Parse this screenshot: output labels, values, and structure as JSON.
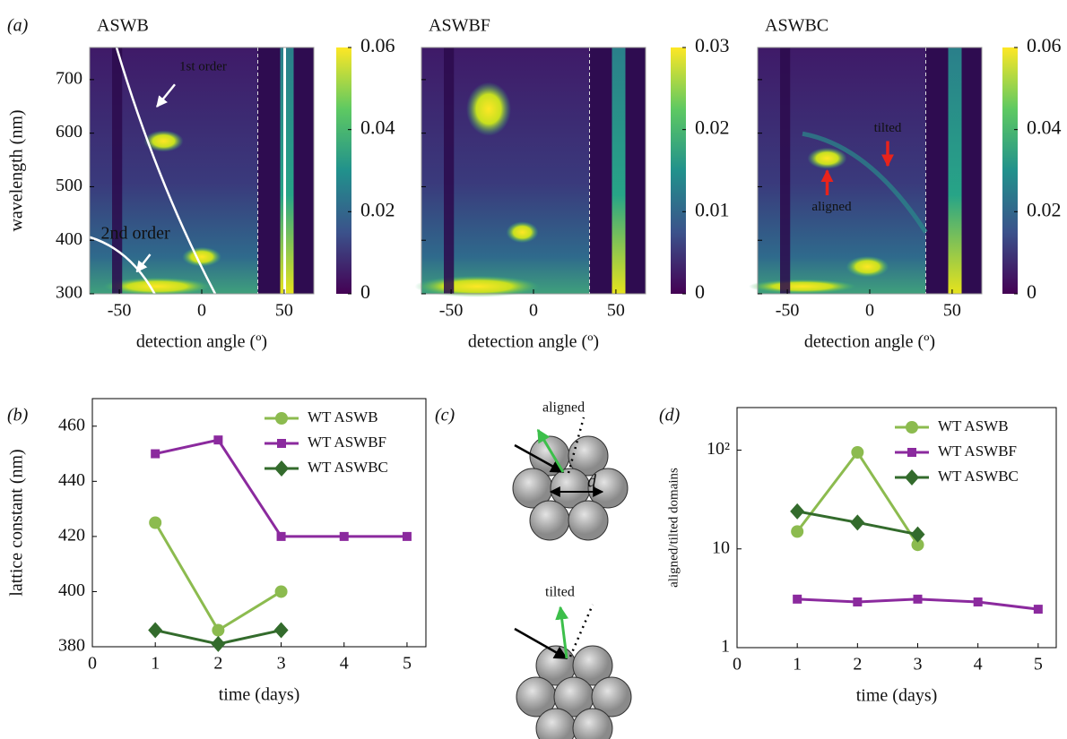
{
  "chart_data": [
    {
      "type": "heatmap",
      "panel_label": "(a)",
      "title": "ASWB",
      "xlabel": "detection angle (º)",
      "ylabel": "wavelength (nm)",
      "xlim": [
        -68,
        68
      ],
      "xticks": [
        -50,
        0,
        50
      ],
      "ylim": [
        300,
        760
      ],
      "yticks": [
        300,
        400,
        500,
        600,
        700
      ],
      "colormap": "viridis",
      "clim": [
        0,
        0.06
      ],
      "cticks": [
        0,
        0.02,
        0.04,
        0.06
      ],
      "annotations": [
        "1st order",
        "2nd order"
      ]
    },
    {
      "type": "heatmap",
      "title": "ASWBF",
      "xlabel": "detection angle (º)",
      "xlim": [
        -68,
        68
      ],
      "xticks": [
        -50,
        0,
        50
      ],
      "ylim": [
        300,
        760
      ],
      "yticks": [
        300,
        400,
        500,
        600,
        700
      ],
      "colormap": "viridis",
      "clim": [
        0,
        0.03
      ],
      "cticks": [
        0,
        0.01,
        0.02,
        0.03
      ]
    },
    {
      "type": "heatmap",
      "title": "ASWBC",
      "xlabel": "detection angle (º)",
      "xlim": [
        -68,
        68
      ],
      "xticks": [
        -50,
        0,
        50
      ],
      "ylim": [
        300,
        760
      ],
      "yticks": [
        300,
        400,
        500,
        600,
        700
      ],
      "colormap": "viridis",
      "clim": [
        0,
        0.06
      ],
      "cticks": [
        0,
        0.02,
        0.04,
        0.06
      ],
      "annotations": [
        "aligned",
        "tilted"
      ]
    },
    {
      "type": "line",
      "panel_label": "(b)",
      "xlabel": "time (days)",
      "ylabel": "lattice constant (nm)",
      "xlim": [
        0,
        5.3
      ],
      "xticks": [
        0,
        1,
        2,
        3,
        4,
        5
      ],
      "ylim": [
        380,
        470
      ],
      "yticks": [
        380,
        400,
        420,
        440,
        460
      ],
      "legend": "upper right",
      "series": [
        {
          "name": "WT ASWB",
          "color": "#8cbb4f",
          "marker": "circle",
          "x": [
            1,
            2,
            3
          ],
          "values": [
            425,
            386,
            400
          ]
        },
        {
          "name": "WT ASWBF",
          "color": "#8b2a9e",
          "marker": "square",
          "x": [
            1,
            2,
            3,
            4,
            5
          ],
          "values": [
            450,
            455,
            420,
            420,
            420
          ]
        },
        {
          "name": "WT ASWBC",
          "color": "#336b2c",
          "marker": "diamond",
          "x": [
            1,
            2,
            3
          ],
          "values": [
            386,
            381,
            386
          ]
        }
      ]
    },
    {
      "type": "line",
      "panel_label": "(d)",
      "xlabel": "time (days)",
      "ylabel": "aligned/tilted domains",
      "log_y": true,
      "xlim": [
        0,
        5.3
      ],
      "xticks": [
        0,
        1,
        2,
        3,
        4,
        5
      ],
      "ylim": [
        1,
        270
      ],
      "yticks": [
        1,
        10,
        {
          "value": 100,
          "label": "10²"
        }
      ],
      "legend": "upper right",
      "series": [
        {
          "name": "WT ASWB",
          "color": "#8cbb4f",
          "marker": "circle",
          "x": [
            1,
            2,
            3
          ],
          "values": [
            15,
            95,
            11
          ]
        },
        {
          "name": "WT ASWBF",
          "color": "#8b2a9e",
          "marker": "square",
          "x": [
            1,
            2,
            3,
            4,
            5
          ],
          "values": [
            3.1,
            2.9,
            3.1,
            2.9,
            2.45
          ]
        },
        {
          "name": "WT ASWBC",
          "color": "#336b2c",
          "marker": "diamond",
          "x": [
            1,
            2,
            3
          ],
          "values": [
            24,
            18.5,
            14
          ]
        }
      ]
    }
  ],
  "diagram": {
    "panel_label": "(c)",
    "top_label": "aligned",
    "spacing_label": "d",
    "bottom_label": "tilted"
  }
}
